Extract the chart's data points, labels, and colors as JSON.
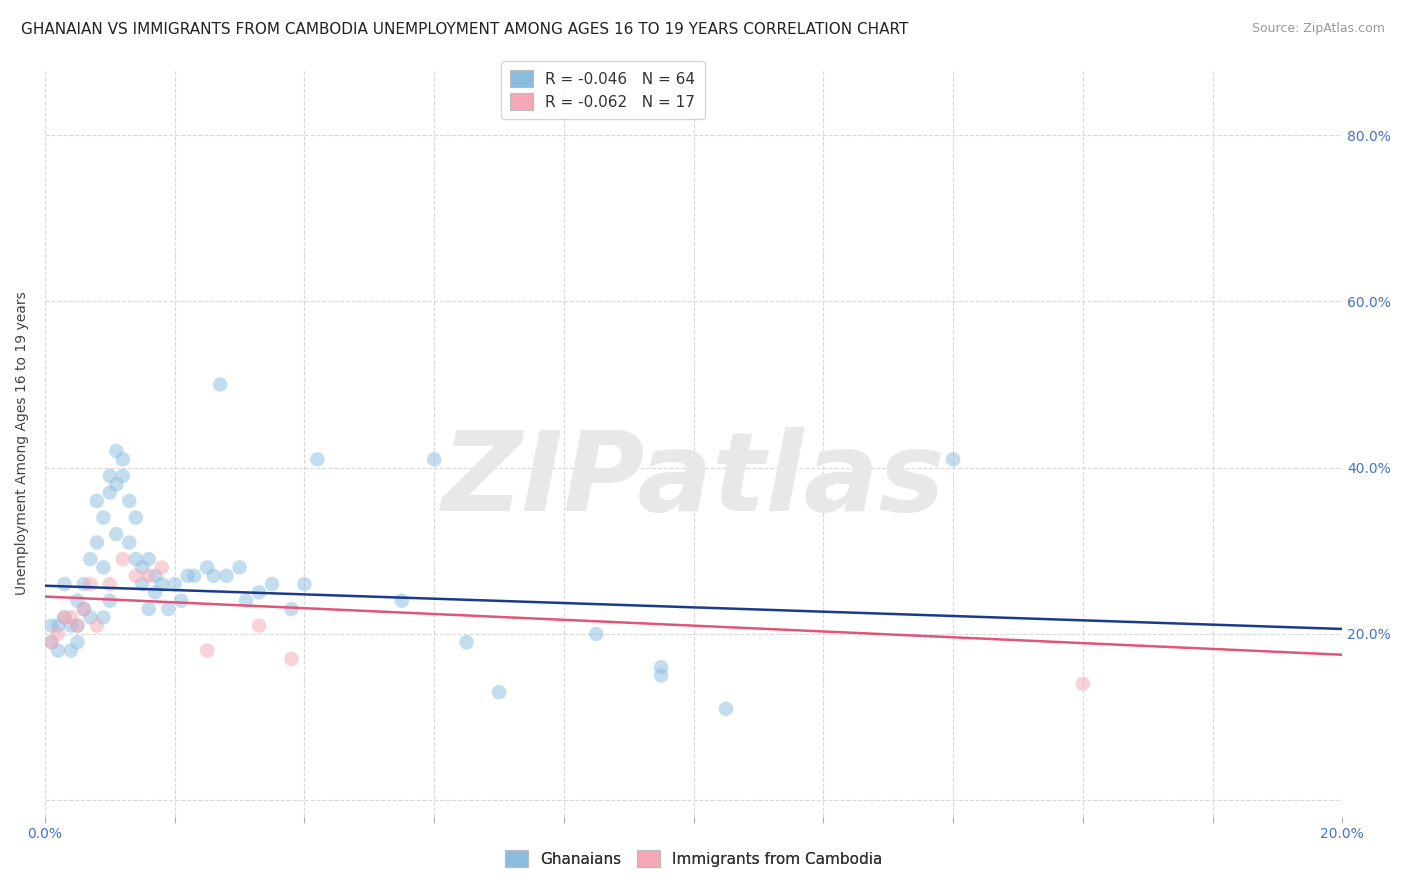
{
  "title": "GHANAIAN VS IMMIGRANTS FROM CAMBODIA UNEMPLOYMENT AMONG AGES 16 TO 19 YEARS CORRELATION CHART",
  "source": "Source: ZipAtlas.com",
  "ylabel": "Unemployment Among Ages 16 to 19 years",
  "xlim": [
    0.0,
    0.2
  ],
  "ylim": [
    -0.02,
    0.88
  ],
  "xticks": [
    0.0,
    0.02,
    0.04,
    0.06,
    0.08,
    0.1,
    0.12,
    0.14,
    0.16,
    0.18,
    0.2
  ],
  "xticklabels": [
    "0.0%",
    "",
    "",
    "",
    "",
    "",
    "",
    "",
    "",
    "",
    "20.0%"
  ],
  "ytick_positions": [
    0.0,
    0.2,
    0.4,
    0.6,
    0.8
  ],
  "ytick_labels_right": [
    "",
    "20.0%",
    "40.0%",
    "60.0%",
    "80.0%"
  ],
  "background_color": "#ffffff",
  "plot_bg_color": "#ffffff",
  "grid_color": "#d8d8d8",
  "watermark": "ZIPatlas",
  "watermark_color": "#e8e8e8",
  "blue_color": "#89bde0",
  "blue_line_color": "#1a3a8a",
  "pink_color": "#f4a7b5",
  "pink_line_color": "#e05578",
  "tick_color": "#4472c4",
  "series": [
    {
      "name": "Ghanaians",
      "R": -0.046,
      "N": 64,
      "points_x": [
        0.001,
        0.001,
        0.002,
        0.002,
        0.003,
        0.003,
        0.004,
        0.004,
        0.005,
        0.005,
        0.005,
        0.006,
        0.006,
        0.007,
        0.007,
        0.008,
        0.008,
        0.009,
        0.009,
        0.009,
        0.01,
        0.01,
        0.01,
        0.011,
        0.011,
        0.011,
        0.012,
        0.012,
        0.013,
        0.013,
        0.014,
        0.014,
        0.015,
        0.015,
        0.016,
        0.016,
        0.017,
        0.017,
        0.018,
        0.019,
        0.02,
        0.021,
        0.022,
        0.023,
        0.025,
        0.026,
        0.027,
        0.028,
        0.03,
        0.031,
        0.033,
        0.035,
        0.038,
        0.04,
        0.042,
        0.055,
        0.06,
        0.065,
        0.07,
        0.085,
        0.095,
        0.105,
        0.14,
        0.095
      ],
      "points_y": [
        0.19,
        0.21,
        0.18,
        0.21,
        0.22,
        0.26,
        0.21,
        0.18,
        0.19,
        0.21,
        0.24,
        0.23,
        0.26,
        0.29,
        0.22,
        0.31,
        0.36,
        0.34,
        0.28,
        0.22,
        0.39,
        0.37,
        0.24,
        0.42,
        0.38,
        0.32,
        0.41,
        0.39,
        0.36,
        0.31,
        0.29,
        0.34,
        0.28,
        0.26,
        0.29,
        0.23,
        0.27,
        0.25,
        0.26,
        0.23,
        0.26,
        0.24,
        0.27,
        0.27,
        0.28,
        0.27,
        0.5,
        0.27,
        0.28,
        0.24,
        0.25,
        0.26,
        0.23,
        0.26,
        0.41,
        0.24,
        0.41,
        0.19,
        0.13,
        0.2,
        0.16,
        0.11,
        0.41,
        0.15
      ]
    },
    {
      "name": "Immigrants from Cambodia",
      "R": -0.062,
      "N": 17,
      "points_x": [
        0.001,
        0.002,
        0.003,
        0.004,
        0.005,
        0.006,
        0.007,
        0.008,
        0.01,
        0.012,
        0.014,
        0.016,
        0.018,
        0.025,
        0.033,
        0.038,
        0.16
      ],
      "points_y": [
        0.19,
        0.2,
        0.22,
        0.22,
        0.21,
        0.23,
        0.26,
        0.21,
        0.26,
        0.29,
        0.27,
        0.27,
        0.28,
        0.18,
        0.21,
        0.17,
        0.14
      ]
    }
  ],
  "title_fontsize": 11,
  "axis_label_fontsize": 10,
  "tick_fontsize": 10,
  "legend_fontsize": 11,
  "marker_size": 110,
  "marker_alpha": 0.5
}
